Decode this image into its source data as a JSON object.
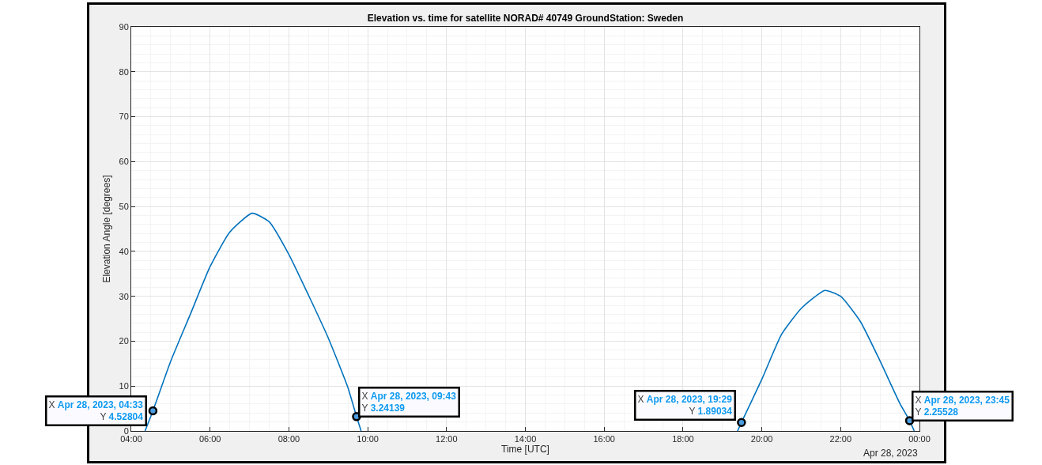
{
  "chart_data": {
    "type": "line",
    "title": "Elevation vs. time for satellite NORAD# 40749 GroundStation: Sweden",
    "xlabel": "Time [UTC]",
    "ylabel": "Elevation Angle [degrees]",
    "x": [
      "2023-04-28T04:21",
      "2023-04-28T04:33",
      "2023-04-28T05:00",
      "2023-04-28T05:30",
      "2023-04-28T06:00",
      "2023-04-28T06:30",
      "2023-04-28T07:04",
      "2023-04-28T07:30",
      "2023-04-28T08:00",
      "2023-04-28T08:30",
      "2023-04-28T09:00",
      "2023-04-28T09:30",
      "2023-04-28T09:43",
      "2023-04-28T09:50",
      "2023-04-28T14:00",
      "2023-04-28T19:23",
      "2023-04-28T19:29",
      "2023-04-28T20:00",
      "2023-04-28T20:30",
      "2023-04-28T21:00",
      "2023-04-28T21:36",
      "2023-04-28T22:00",
      "2023-04-28T22:30",
      "2023-04-28T23:00",
      "2023-04-28T23:30",
      "2023-04-28T23:45",
      "2023-04-28T23:52"
    ],
    "series": [
      {
        "color": "#0072bd",
        "values": [
          0,
          4.5,
          15.5,
          26,
          36.6,
          44.3,
          48.5,
          46.6,
          39.3,
          30.2,
          20.7,
          9.6,
          3.2,
          0,
          null,
          0,
          1.9,
          11.5,
          21.5,
          27.3,
          31.3,
          30,
          24.4,
          15.6,
          6.2,
          2.3,
          0
        ]
      },
      {
        "type": "scatter",
        "marker": "circle",
        "color": "#4d9de0",
        "x": [
          "2023-04-28T04:33",
          "2023-04-28T09:43",
          "2023-04-28T19:29",
          "2023-04-28T23:45"
        ],
        "values": [
          4.5,
          3.2,
          1.9,
          2.3
        ]
      }
    ],
    "xlim": [
      "2023-04-28T04:00",
      "2023-04-29T00:00"
    ],
    "xticks": [
      {
        "value": "2023-04-28T04:00",
        "label": "04:00"
      },
      {
        "value": "2023-04-28T06:00",
        "label": "06:00"
      },
      {
        "value": "2023-04-28T08:00",
        "label": "08:00"
      },
      {
        "value": "2023-04-28T10:00",
        "label": "10:00"
      },
      {
        "value": "2023-04-28T12:00",
        "label": "12:00"
      },
      {
        "value": "2023-04-28T14:00",
        "label": "14:00"
      },
      {
        "value": "2023-04-28T16:00",
        "label": "16:00"
      },
      {
        "value": "2023-04-28T18:00",
        "label": "18:00"
      },
      {
        "value": "2023-04-28T20:00",
        "label": "20:00"
      },
      {
        "value": "2023-04-28T22:00",
        "label": "22:00"
      },
      {
        "value": "2023-04-29T00:00",
        "label": "00:00"
      }
    ],
    "ylim": [
      0,
      90
    ],
    "yticks": [
      0,
      10,
      20,
      30,
      40,
      50,
      60,
      70,
      80,
      90
    ],
    "grid": true,
    "marker": "none",
    "line_style": "solid",
    "annotations": [
      {
        "text": "X Apr 28, 2023, 04:33\nY 4.52804",
        "x": "2023-04-28T04:33",
        "y": 4.52804
      },
      {
        "text": "X Apr 28, 2023, 09:43\nY 3.24139",
        "x": "2023-04-28T09:43",
        "y": 3.24139
      },
      {
        "text": "X Apr 28, 2023, 19:29\nY 1.89034",
        "x": "2023-04-28T19:29",
        "y": 1.89034
      },
      {
        "text": "X Apr 28, 2023, 23:45\nY 2.25528",
        "x": "2023-04-28T23:45",
        "y": 2.25528
      },
      "Apr 28, 2023"
    ]
  }
}
